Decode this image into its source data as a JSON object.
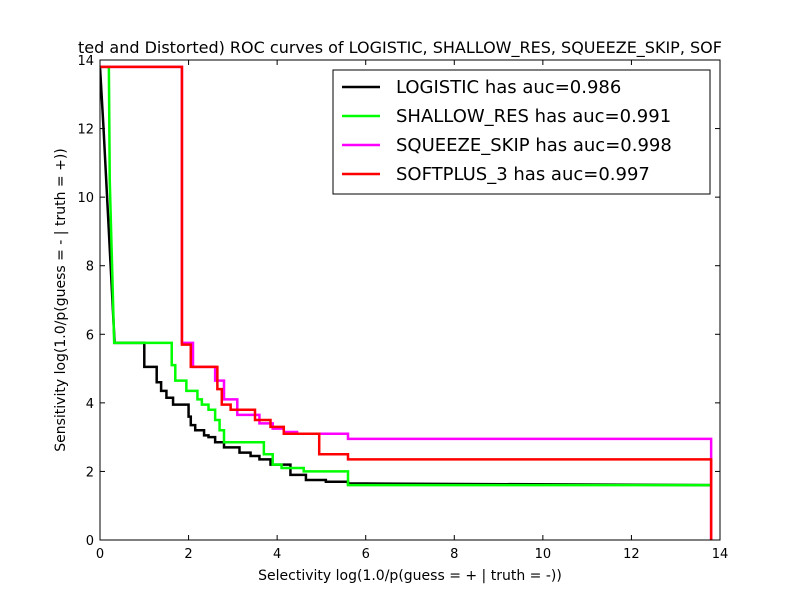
{
  "chart_data": {
    "type": "line",
    "title": "ted and Distorted) ROC curves of LOGISTIC, SHALLOW_RES, SQUEEZE_SKIP, SOF",
    "xlabel": "Selectivity log(1.0/p(guess = + | truth = -))",
    "ylabel": "Sensitivity log(1.0/p(guess = - | truth = +))",
    "xlim": [
      0,
      14
    ],
    "ylim": [
      0,
      14
    ],
    "xticks": [
      "0",
      "2",
      "4",
      "6",
      "8",
      "10",
      "12",
      "14"
    ],
    "yticks": [
      "0",
      "2",
      "4",
      "6",
      "8",
      "10",
      "12",
      "14"
    ],
    "grid": false,
    "legend_position": "top-right",
    "series": [
      {
        "name": "LOGISTIC has auc=0.986",
        "color": "#000000",
        "x": [
          0,
          0.08,
          0.2,
          0.33,
          1.0,
          1.0,
          1.28,
          1.28,
          1.38,
          1.38,
          1.5,
          1.5,
          1.65,
          1.65,
          2.0,
          2.0,
          2.05,
          2.05,
          2.15,
          2.15,
          2.35,
          2.35,
          2.45,
          2.45,
          2.6,
          2.6,
          2.8,
          2.8,
          3.15,
          3.15,
          3.4,
          3.4,
          3.6,
          3.6,
          3.85,
          3.85,
          4.3,
          4.3,
          4.65,
          4.65,
          5.1,
          5.1,
          5.6,
          5.6,
          13.8
        ],
        "y": [
          13.8,
          12.0,
          9.0,
          5.75,
          5.75,
          5.05,
          5.05,
          4.6,
          4.6,
          4.35,
          4.35,
          4.15,
          4.15,
          3.95,
          3.95,
          3.6,
          3.6,
          3.35,
          3.35,
          3.2,
          3.2,
          3.05,
          3.05,
          3.0,
          3.0,
          2.85,
          2.85,
          2.7,
          2.7,
          2.55,
          2.55,
          2.45,
          2.45,
          2.35,
          2.35,
          2.2,
          2.2,
          1.9,
          1.9,
          1.75,
          1.75,
          1.7,
          1.7,
          1.65,
          1.6
        ]
      },
      {
        "name": "SHALLOW_RES has auc=0.991",
        "color": "#00ff00",
        "x": [
          0,
          0.2,
          0.22,
          0.32,
          1.62,
          1.62,
          1.7,
          1.7,
          1.95,
          1.95,
          2.2,
          2.2,
          2.3,
          2.3,
          2.45,
          2.45,
          2.6,
          2.6,
          2.7,
          2.7,
          2.8,
          2.8,
          3.7,
          3.7,
          3.9,
          3.9,
          4.1,
          4.1,
          4.6,
          4.6,
          5.6,
          5.6,
          13.8
        ],
        "y": [
          13.8,
          13.8,
          10.5,
          5.75,
          5.75,
          5.1,
          5.1,
          4.65,
          4.65,
          4.35,
          4.35,
          4.1,
          4.1,
          3.95,
          3.95,
          3.8,
          3.8,
          3.5,
          3.5,
          3.2,
          3.2,
          2.85,
          2.85,
          2.5,
          2.5,
          2.2,
          2.2,
          2.1,
          2.1,
          2.0,
          2.0,
          1.6,
          1.6
        ]
      },
      {
        "name": "SQUEEZE_SKIP has auc=0.998",
        "color": "#ff00ff",
        "x": [
          0,
          1.85,
          1.85,
          2.1,
          2.1,
          2.6,
          2.6,
          2.8,
          2.8,
          3.1,
          3.1,
          3.6,
          3.6,
          3.9,
          3.9,
          4.15,
          4.15,
          4.45,
          4.45,
          5.6,
          5.6,
          13.8,
          13.8
        ],
        "y": [
          13.8,
          13.8,
          5.75,
          5.75,
          5.05,
          5.05,
          4.65,
          4.65,
          4.1,
          4.1,
          3.65,
          3.65,
          3.4,
          3.4,
          3.25,
          3.25,
          3.15,
          3.15,
          3.1,
          3.1,
          2.95,
          2.95,
          0
        ]
      },
      {
        "name": "SOFTPLUS_3 has auc=0.997",
        "color": "#ff0000",
        "x": [
          0,
          1.85,
          1.85,
          2.05,
          2.05,
          2.65,
          2.65,
          2.75,
          2.75,
          2.95,
          2.95,
          3.5,
          3.5,
          3.85,
          3.85,
          4.15,
          4.15,
          4.95,
          4.95,
          5.6,
          5.6,
          13.8,
          13.8
        ],
        "y": [
          13.8,
          13.8,
          5.7,
          5.7,
          5.05,
          5.05,
          4.4,
          4.4,
          3.95,
          3.95,
          3.8,
          3.8,
          3.5,
          3.5,
          3.3,
          3.3,
          3.1,
          3.1,
          2.5,
          2.5,
          2.35,
          2.35,
          0
        ]
      }
    ]
  }
}
